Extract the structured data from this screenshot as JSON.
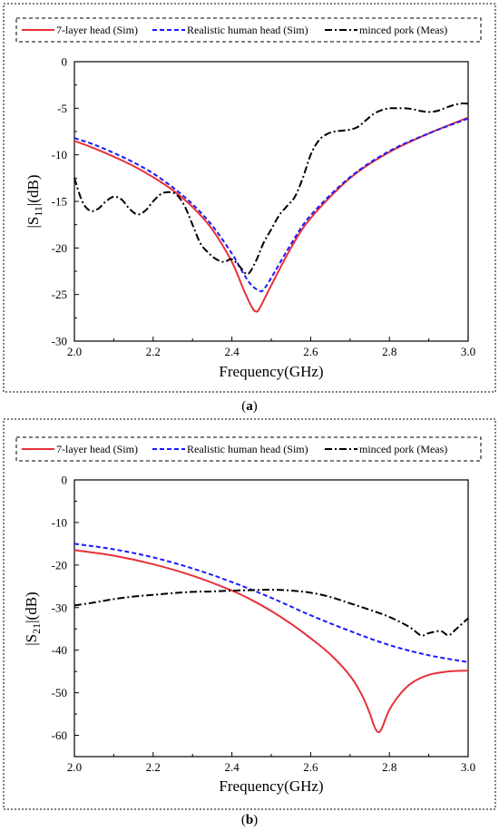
{
  "chart_data": [
    {
      "id": "a",
      "type": "line",
      "panel_label": "a",
      "xlabel": "Frequency(GHz)",
      "ylabel_main": "|S",
      "ylabel_sub": "11",
      "ylabel_tail": "|(dB)",
      "xlim": [
        2.0,
        3.0
      ],
      "ylim": [
        -30,
        0
      ],
      "xticks": [
        2.0,
        2.2,
        2.4,
        2.6,
        2.8,
        3.0
      ],
      "xtick_labels": [
        "2.0",
        "2.2",
        "2.4",
        "2.6",
        "2.8",
        "3.0"
      ],
      "yticks": [
        0,
        -5,
        -10,
        -15,
        -20,
        -25,
        -30
      ],
      "ytick_labels": [
        "0",
        "-5",
        "-10",
        "-15",
        "-20",
        "-25",
        "-30"
      ],
      "grid": false,
      "legend_position": "top",
      "series": [
        {
          "name": "7-layer head (Sim)",
          "color": "#e8313a",
          "style": "solid",
          "x": [
            2.0,
            2.05,
            2.1,
            2.15,
            2.2,
            2.25,
            2.3,
            2.35,
            2.4,
            2.43,
            2.45,
            2.46,
            2.47,
            2.5,
            2.55,
            2.6,
            2.7,
            2.8,
            2.9,
            3.0
          ],
          "y": [
            -8.5,
            -9.3,
            -10.2,
            -11.2,
            -12.4,
            -13.8,
            -15.6,
            -18.0,
            -21.5,
            -24.5,
            -26.3,
            -26.8,
            -26.5,
            -24.0,
            -20.0,
            -16.8,
            -12.5,
            -9.7,
            -7.7,
            -6.0
          ]
        },
        {
          "name": "Realistic human head (Sim)",
          "color": "#1a1aff",
          "style": "dashed",
          "x": [
            2.0,
            2.05,
            2.1,
            2.15,
            2.2,
            2.25,
            2.3,
            2.35,
            2.4,
            2.43,
            2.45,
            2.47,
            2.48,
            2.5,
            2.55,
            2.6,
            2.7,
            2.8,
            2.9,
            3.0
          ],
          "y": [
            -8.2,
            -8.9,
            -9.8,
            -10.8,
            -12.0,
            -13.5,
            -15.3,
            -17.6,
            -20.6,
            -22.8,
            -24.0,
            -24.6,
            -24.5,
            -23.2,
            -19.6,
            -16.5,
            -12.4,
            -9.6,
            -7.7,
            -6.1
          ]
        },
        {
          "name": "minced pork (Meas)",
          "color": "#000000",
          "style": "dashdot",
          "x": [
            2.0,
            2.02,
            2.04,
            2.06,
            2.08,
            2.1,
            2.12,
            2.14,
            2.16,
            2.18,
            2.2,
            2.22,
            2.24,
            2.26,
            2.28,
            2.3,
            2.32,
            2.34,
            2.36,
            2.38,
            2.4,
            2.42,
            2.44,
            2.46,
            2.48,
            2.5,
            2.52,
            2.54,
            2.56,
            2.58,
            2.6,
            2.62,
            2.64,
            2.66,
            2.68,
            2.7,
            2.72,
            2.74,
            2.76,
            2.78,
            2.8,
            2.82,
            2.84,
            2.86,
            2.88,
            2.9,
            2.92,
            2.94,
            2.96,
            2.98,
            3.0
          ],
          "y": [
            -12.5,
            -15.0,
            -16.0,
            -15.8,
            -15.0,
            -14.5,
            -14.8,
            -15.8,
            -16.4,
            -16.0,
            -15.0,
            -14.2,
            -14.0,
            -14.3,
            -15.5,
            -17.5,
            -19.5,
            -20.5,
            -21.2,
            -21.5,
            -21.2,
            -22.0,
            -22.8,
            -21.5,
            -19.5,
            -18.0,
            -16.5,
            -15.5,
            -14.5,
            -12.5,
            -10.0,
            -8.5,
            -7.8,
            -7.5,
            -7.4,
            -7.3,
            -7.0,
            -6.3,
            -5.6,
            -5.2,
            -5.0,
            -5.0,
            -5.0,
            -5.1,
            -5.3,
            -5.4,
            -5.3,
            -5.0,
            -4.7,
            -4.5,
            -4.5
          ]
        }
      ]
    },
    {
      "id": "b",
      "type": "line",
      "panel_label": "b",
      "xlabel": "Frequency(GHz)",
      "ylabel_main": "|S",
      "ylabel_sub": "21",
      "ylabel_tail": "|(dB)",
      "xlim": [
        2.0,
        3.0
      ],
      "ylim": [
        -65,
        0
      ],
      "xticks": [
        2.0,
        2.2,
        2.4,
        2.6,
        2.8,
        3.0
      ],
      "xtick_labels": [
        "2.0",
        "2.2",
        "2.4",
        "2.6",
        "2.8",
        "3.0"
      ],
      "yticks": [
        0,
        -10,
        -20,
        -30,
        -40,
        -50,
        -60
      ],
      "ytick_labels": [
        "0",
        "-10",
        "-20",
        "-30",
        "-40",
        "-50",
        "-60"
      ],
      "grid": false,
      "legend_position": "top",
      "series": [
        {
          "name": "7-layer head (Sim)",
          "color": "#e8313a",
          "style": "solid",
          "x": [
            2.0,
            2.1,
            2.2,
            2.3,
            2.4,
            2.45,
            2.5,
            2.55,
            2.6,
            2.65,
            2.7,
            2.73,
            2.75,
            2.76,
            2.77,
            2.78,
            2.8,
            2.83,
            2.86,
            2.9,
            2.95,
            3.0
          ],
          "y": [
            -16.5,
            -17.8,
            -19.8,
            -22.5,
            -26.0,
            -28.2,
            -30.8,
            -33.8,
            -37.2,
            -41.0,
            -46.0,
            -50.5,
            -54.8,
            -57.5,
            -59.2,
            -58.5,
            -54.0,
            -50.0,
            -47.5,
            -45.8,
            -45.0,
            -44.8
          ]
        },
        {
          "name": "Realistic human head (Sim)",
          "color": "#1a1aff",
          "style": "dashed",
          "x": [
            2.0,
            2.1,
            2.2,
            2.3,
            2.4,
            2.5,
            2.6,
            2.7,
            2.8,
            2.9,
            3.0
          ],
          "y": [
            -15.0,
            -16.3,
            -18.2,
            -20.8,
            -24.0,
            -27.7,
            -31.8,
            -35.5,
            -38.8,
            -41.2,
            -42.8
          ]
        },
        {
          "name": "minced pork (Meas)",
          "color": "#000000",
          "style": "dashdot",
          "x": [
            2.0,
            2.05,
            2.1,
            2.15,
            2.2,
            2.25,
            2.3,
            2.35,
            2.4,
            2.45,
            2.5,
            2.55,
            2.6,
            2.65,
            2.7,
            2.75,
            2.8,
            2.85,
            2.88,
            2.9,
            2.93,
            2.95,
            2.97,
            3.0
          ],
          "y": [
            -29.5,
            -28.8,
            -28.0,
            -27.4,
            -27.0,
            -26.6,
            -26.3,
            -26.2,
            -26.0,
            -25.9,
            -25.8,
            -26.0,
            -26.5,
            -27.5,
            -29.0,
            -30.5,
            -32.2,
            -34.5,
            -36.5,
            -36.0,
            -35.5,
            -36.5,
            -35.0,
            -32.5
          ]
        }
      ]
    }
  ]
}
